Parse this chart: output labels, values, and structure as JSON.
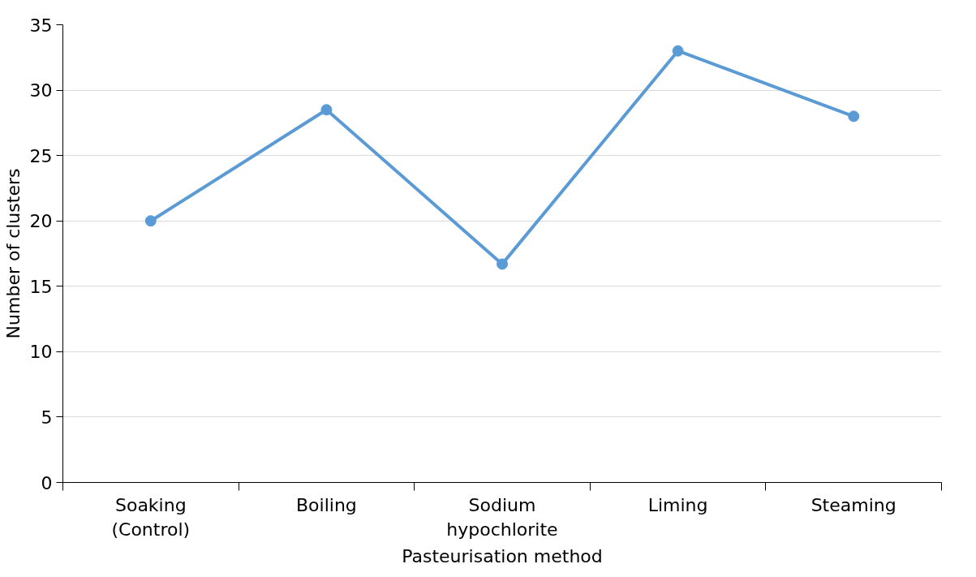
{
  "chart_data": {
    "type": "line",
    "xlabel": "Pasteurisation method",
    "ylabel": "Number of clusters",
    "categories": [
      "Soaking (Control)",
      "Boiling",
      "Sodium hypochlorite",
      "Liming",
      "Steaming"
    ],
    "series": [
      {
        "color": "#5b9bd5",
        "values": [
          20,
          28.5,
          16.7,
          33,
          28.0
        ]
      }
    ],
    "ylim": [
      0,
      35
    ],
    "yticks": [
      0,
      5,
      10,
      15,
      20,
      25,
      30,
      35
    ],
    "grid": "y",
    "marker": "circle",
    "line_style": "solid"
  }
}
